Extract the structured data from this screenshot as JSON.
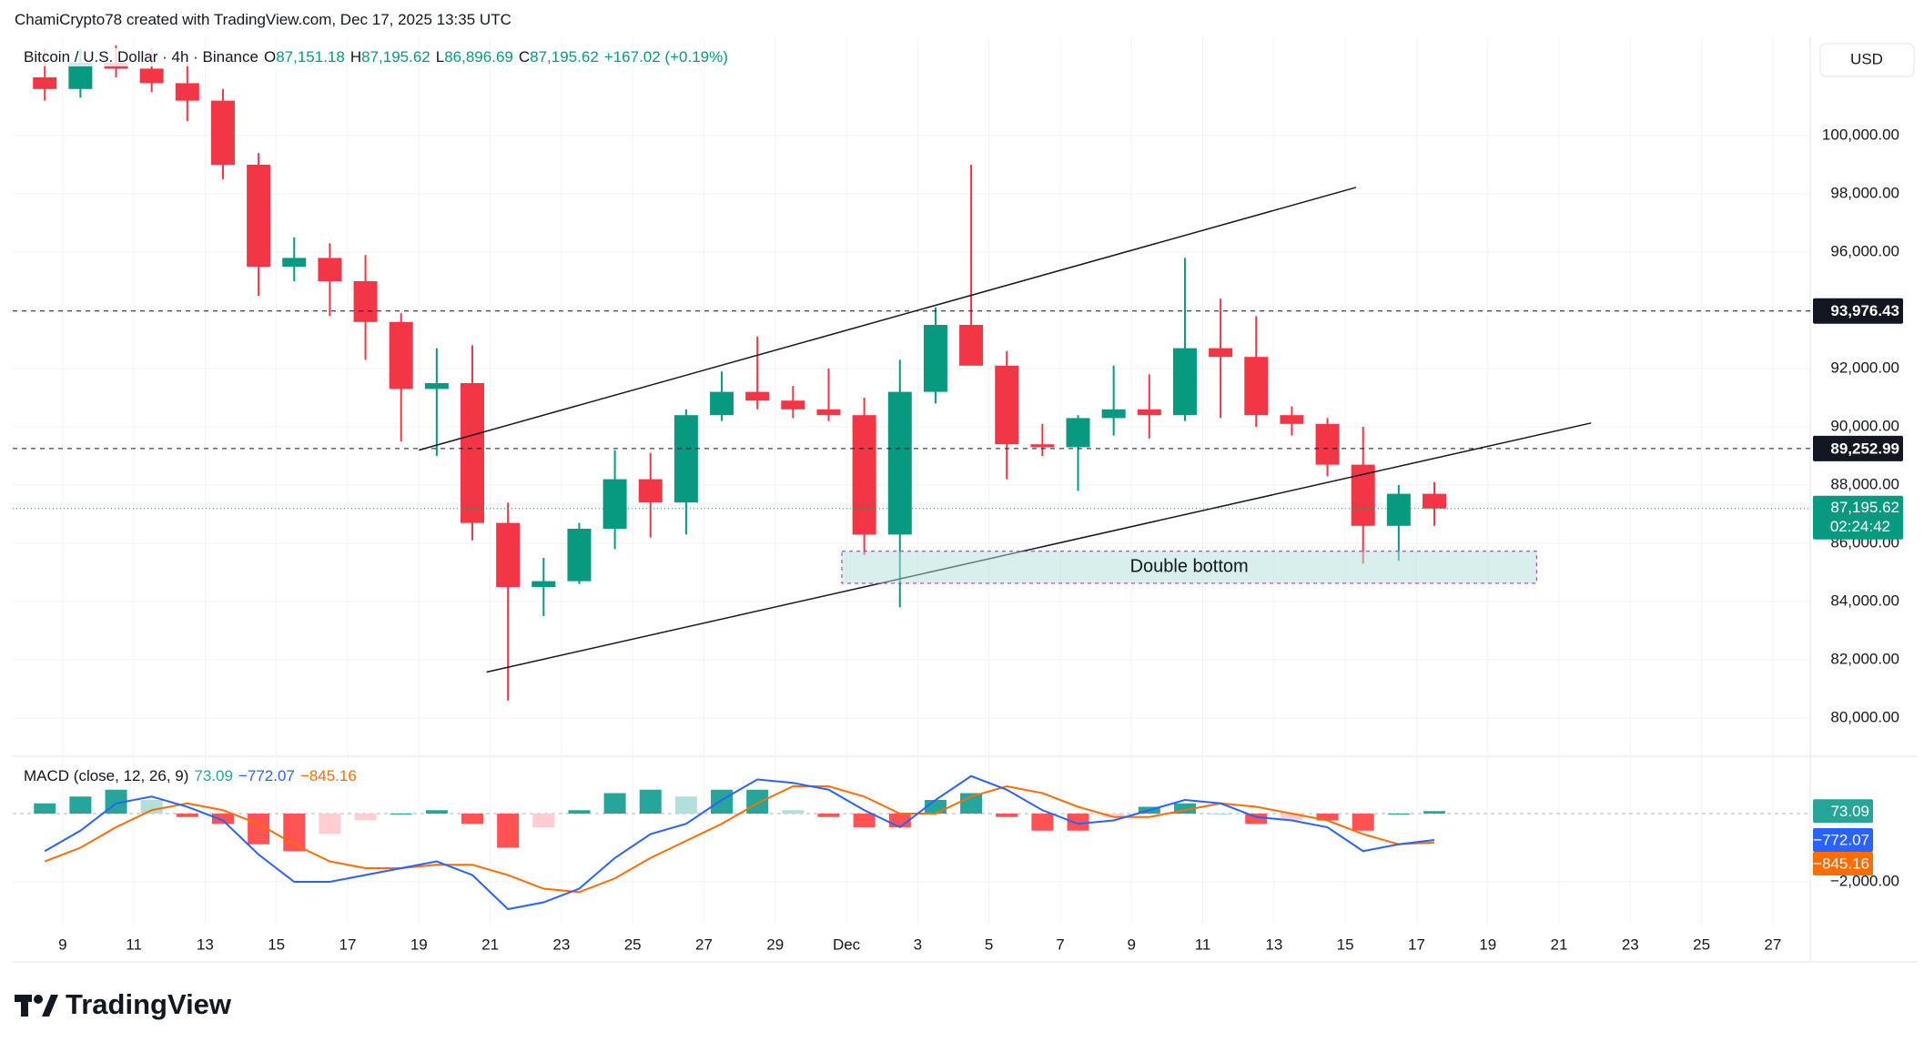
{
  "header": {
    "attribution": "ChamiCrypto78 created with TradingView.com, Dec 17, 2025 13:35 UTC",
    "brand": "TradingView"
  },
  "chart_data": [
    {
      "type": "candlestick",
      "title": "Bitcoin / U.S. Dollar · 4h · Binance",
      "currency": "USD",
      "ohlc_legend": [
        {
          "key": "O",
          "value": 87151.18,
          "label": "87,151.18"
        },
        {
          "key": "H",
          "value": 87195.62,
          "label": "87,195.62"
        },
        {
          "key": "L",
          "value": 86896.69,
          "label": "86,896.69"
        },
        {
          "key": "C",
          "value": 87195.62,
          "label": "87,195.62"
        }
      ],
      "change": {
        "value": 167.02,
        "percent": 0.19,
        "label": "+167.02 (+0.19%)"
      },
      "colors": {
        "up": "#089981",
        "down": "#f23645"
      },
      "x": [
        8.5,
        9.5,
        10.5,
        11.5,
        12.5,
        13.5,
        14.5,
        15.5,
        16.5,
        17.5,
        18.5,
        19.5,
        20.5,
        21.5,
        22.5,
        23.5,
        24.5,
        25.5,
        26.5,
        27.5,
        28.5,
        29.5,
        30.5,
        31.5,
        32.5,
        33.5,
        34.5,
        35.5,
        36.5,
        37.5,
        38.5,
        39.5,
        40.5,
        41.5,
        42.5,
        43.5,
        44.5,
        45.5,
        46.5,
        47.5
      ],
      "open": [
        102000,
        101600,
        102500,
        102300,
        101800,
        101200,
        99000,
        95500,
        95800,
        95000,
        93600,
        91300,
        91500,
        86700,
        84500,
        84700,
        86500,
        88200,
        87400,
        90400,
        91200,
        90900,
        90600,
        90400,
        86300,
        91200,
        93500,
        92100,
        89400,
        89300,
        90300,
        90600,
        90400,
        92700,
        92400,
        90400,
        90100,
        88700,
        86600,
        87700
      ],
      "high": [
        103000,
        103000,
        103100,
        103000,
        102500,
        101600,
        99400,
        96500,
        96300,
        95900,
        93900,
        92700,
        92800,
        87400,
        85500,
        86700,
        89200,
        89100,
        90600,
        91900,
        93100,
        91400,
        92000,
        91000,
        92300,
        94100,
        99000,
        92600,
        90100,
        90400,
        92100,
        91800,
        95800,
        94400,
        93800,
        90700,
        90300,
        90000,
        88000,
        88100
      ],
      "low": [
        101200,
        101300,
        102000,
        101500,
        100500,
        98500,
        94500,
        95000,
        93800,
        92300,
        89500,
        89000,
        86100,
        80600,
        83500,
        84600,
        85800,
        86200,
        86300,
        90200,
        90600,
        90300,
        90200,
        85600,
        83800,
        90800,
        92200,
        88200,
        89000,
        87800,
        89700,
        89600,
        90200,
        90300,
        90000,
        89700,
        88300,
        85300,
        85400,
        86600
      ],
      "close": [
        101600,
        102500,
        102300,
        101800,
        101200,
        99000,
        95500,
        95800,
        95000,
        93600,
        91300,
        91500,
        86700,
        84500,
        84700,
        86500,
        88200,
        87400,
        90400,
        91200,
        90900,
        90600,
        90400,
        86300,
        91200,
        93500,
        92100,
        89400,
        89300,
        90300,
        90600,
        90400,
        92700,
        92400,
        90400,
        90100,
        88700,
        86600,
        87700,
        87195.62
      ],
      "xlim": [
        7.6,
        58.05
      ],
      "xticks": [
        9,
        11,
        13,
        15,
        17,
        19,
        21,
        23,
        25,
        27,
        29,
        {
          "value": 31,
          "label": "Dec"
        },
        {
          "value": 33,
          "label": "3"
        },
        {
          "value": 35,
          "label": "5"
        },
        {
          "value": 37,
          "label": "7"
        },
        {
          "value": 39,
          "label": "9"
        },
        {
          "value": 41,
          "label": "11"
        },
        {
          "value": 43,
          "label": "13"
        },
        {
          "value": 45,
          "label": "15"
        },
        {
          "value": 47,
          "label": "17"
        },
        {
          "value": 49,
          "label": "19"
        },
        {
          "value": 51,
          "label": "21"
        },
        {
          "value": 53,
          "label": "23"
        },
        {
          "value": 55,
          "label": "25"
        },
        {
          "value": 57,
          "label": "27"
        }
      ],
      "ylim": [
        78750,
        103375
      ],
      "yticks": [
        {
          "value": 80000,
          "label": "80,000.00"
        },
        {
          "value": 82000,
          "label": "82,000.00"
        },
        {
          "value": 84000,
          "label": "84,000.00"
        },
        {
          "value": 86000,
          "label": "86,000.00"
        },
        {
          "value": 88000,
          "label": "88,000.00"
        },
        {
          "value": 90000,
          "label": "90,000.00"
        },
        {
          "value": 92000,
          "label": "92,000.00"
        },
        {
          "value": 94000,
          "label": "94,000.00"
        },
        {
          "value": 96000,
          "label": "96,000.00"
        },
        {
          "value": 98000,
          "label": "98,000.00"
        },
        {
          "value": 100000,
          "label": "100,000.00"
        }
      ],
      "grid": true,
      "hlines": [
        {
          "value": 93976.43,
          "label": "93,976.43"
        },
        {
          "value": 89252.99,
          "label": "89,252.99"
        }
      ],
      "last_price": {
        "value": 87195.62,
        "label": "87,195.62",
        "countdown": "02:24:42"
      },
      "trendlines": [
        {
          "x": [
            19,
            45.3
          ],
          "y": [
            89200,
            98220
          ]
        },
        {
          "x": [
            20.9,
            51.9
          ],
          "y": [
            81578,
            90131
          ]
        }
      ],
      "zones": [
        {
          "label": "Double bottom",
          "x": [
            30.87,
            50.37
          ],
          "y": [
            84625,
            85728
          ]
        }
      ]
    },
    {
      "type": "macd",
      "title": "MACD (close, 12, 26, 9)",
      "histogram": {
        "values": [
          300,
          500,
          700,
          400,
          -100,
          -300,
          -900,
          -1100,
          -600,
          -200,
          0,
          100,
          -300,
          -1000,
          -400,
          100,
          600,
          700,
          500,
          700,
          700,
          100,
          -100,
          -400,
          -400,
          400,
          600,
          -100,
          -500,
          -500,
          -100,
          200,
          300,
          0,
          -300,
          -200,
          -200,
          -500,
          0,
          73.09
        ],
        "last_label": "73.09",
        "color": "#26a69a",
        "colors": [
          "#26a69a",
          "#b2dfdb",
          "#ff5252",
          "#ffcdd2"
        ]
      },
      "macd": {
        "values": [
          -1100,
          -500,
          300,
          500,
          200,
          -200,
          -1200,
          -2000,
          -2000,
          -1800,
          -1600,
          -1400,
          -1800,
          -2800,
          -2600,
          -2200,
          -1300,
          -600,
          -300,
          400,
          1000,
          900,
          700,
          100,
          -400,
          400,
          1100,
          700,
          100,
          -300,
          -200,
          100,
          400,
          300,
          -100,
          -200,
          -400,
          -1100,
          -900,
          -772.07
        ],
        "last_label": "−772.07",
        "color": "#2962ff"
      },
      "signal": {
        "values": [
          -1400,
          -1000,
          -400,
          100,
          300,
          100,
          -300,
          -900,
          -1400,
          -1600,
          -1600,
          -1500,
          -1500,
          -1800,
          -2200,
          -2300,
          -1900,
          -1300,
          -800,
          -300,
          300,
          800,
          800,
          500,
          0,
          0,
          500,
          800,
          600,
          200,
          -100,
          -100,
          100,
          300,
          200,
          0,
          -200,
          -600,
          -900,
          -845.16
        ],
        "last_label": "−845.16",
        "color": "#ff6d00"
      },
      "ylim": [
        -3253,
        1627
      ],
      "yticks": [
        {
          "value": -2000,
          "label": "−2,000.00"
        }
      ]
    }
  ]
}
